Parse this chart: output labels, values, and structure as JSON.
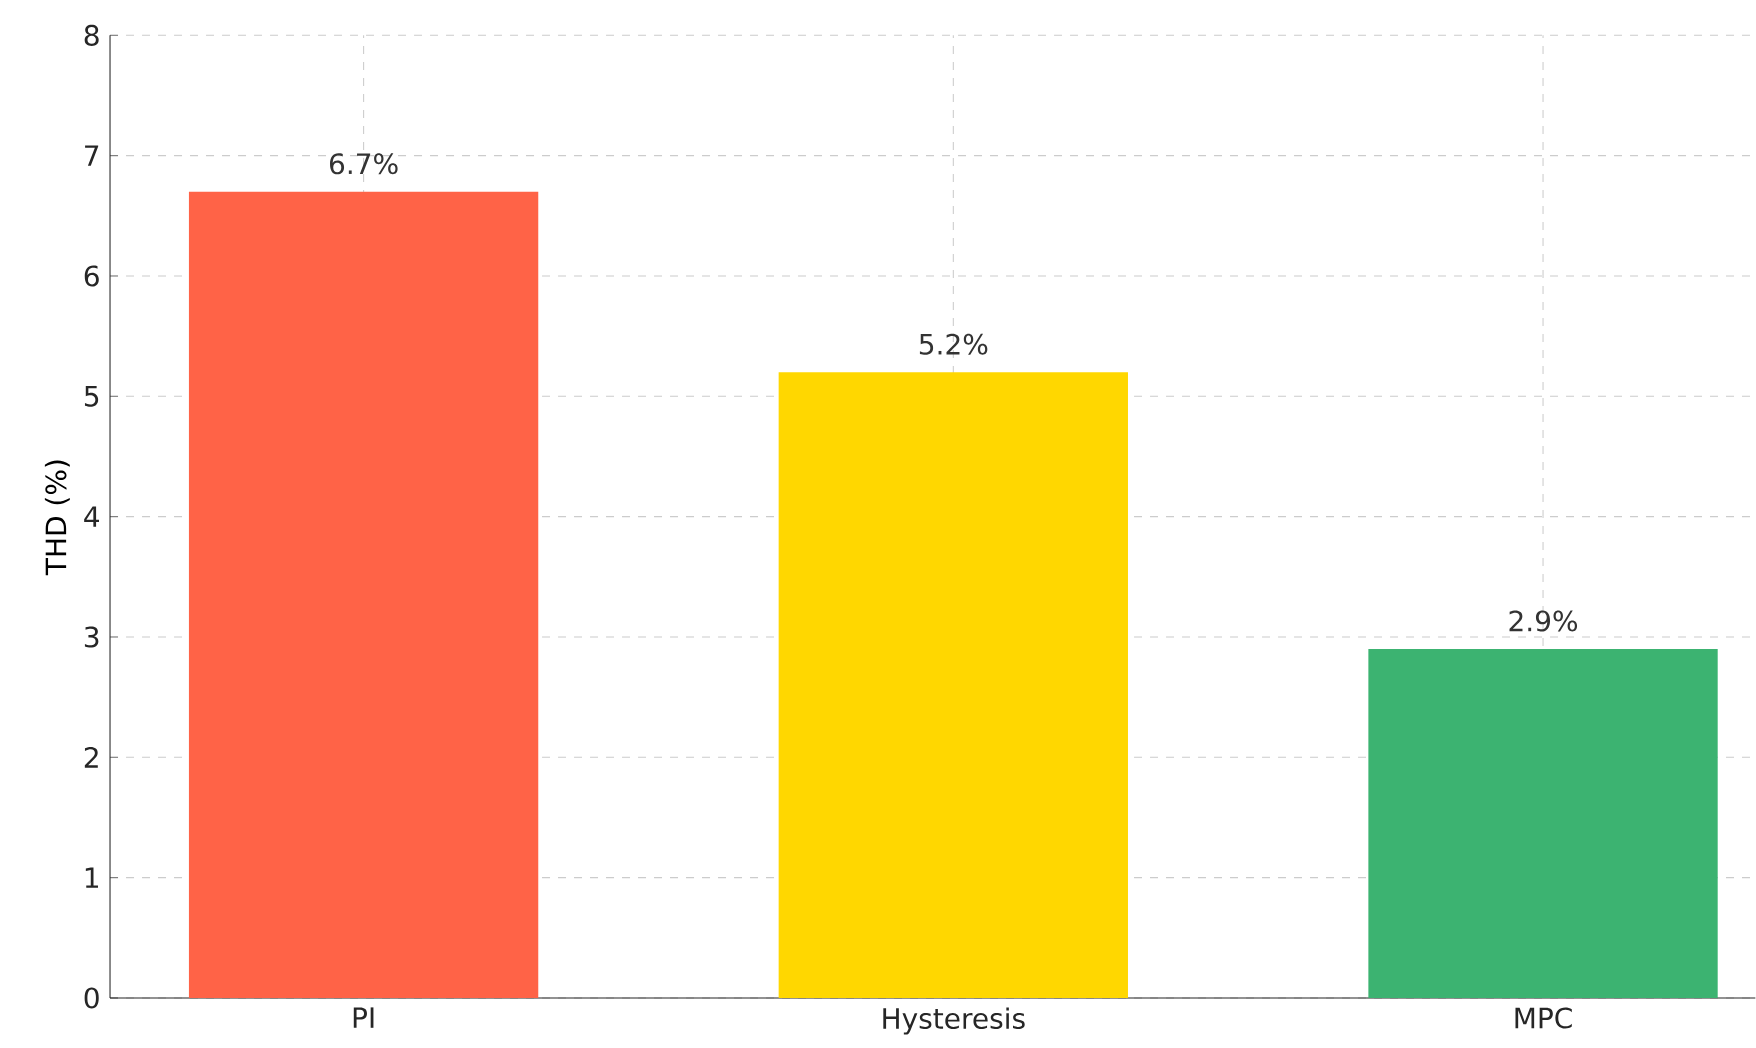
{
  "chart_data": {
    "type": "bar",
    "ylabel": "THD (%)",
    "categories": [
      "PI",
      "Hysteresis",
      "MPC"
    ],
    "values": [
      6.7,
      5.2,
      2.9
    ],
    "colors": [
      "#ff6347",
      "#ffd700",
      "#3cb371"
    ],
    "value_labels": [
      "6.7%",
      "5.2%",
      "2.9%"
    ],
    "ylim": [
      0,
      8
    ],
    "yticks": [
      0,
      1,
      2,
      3,
      4,
      5,
      6,
      7,
      8
    ],
    "grid": true
  }
}
